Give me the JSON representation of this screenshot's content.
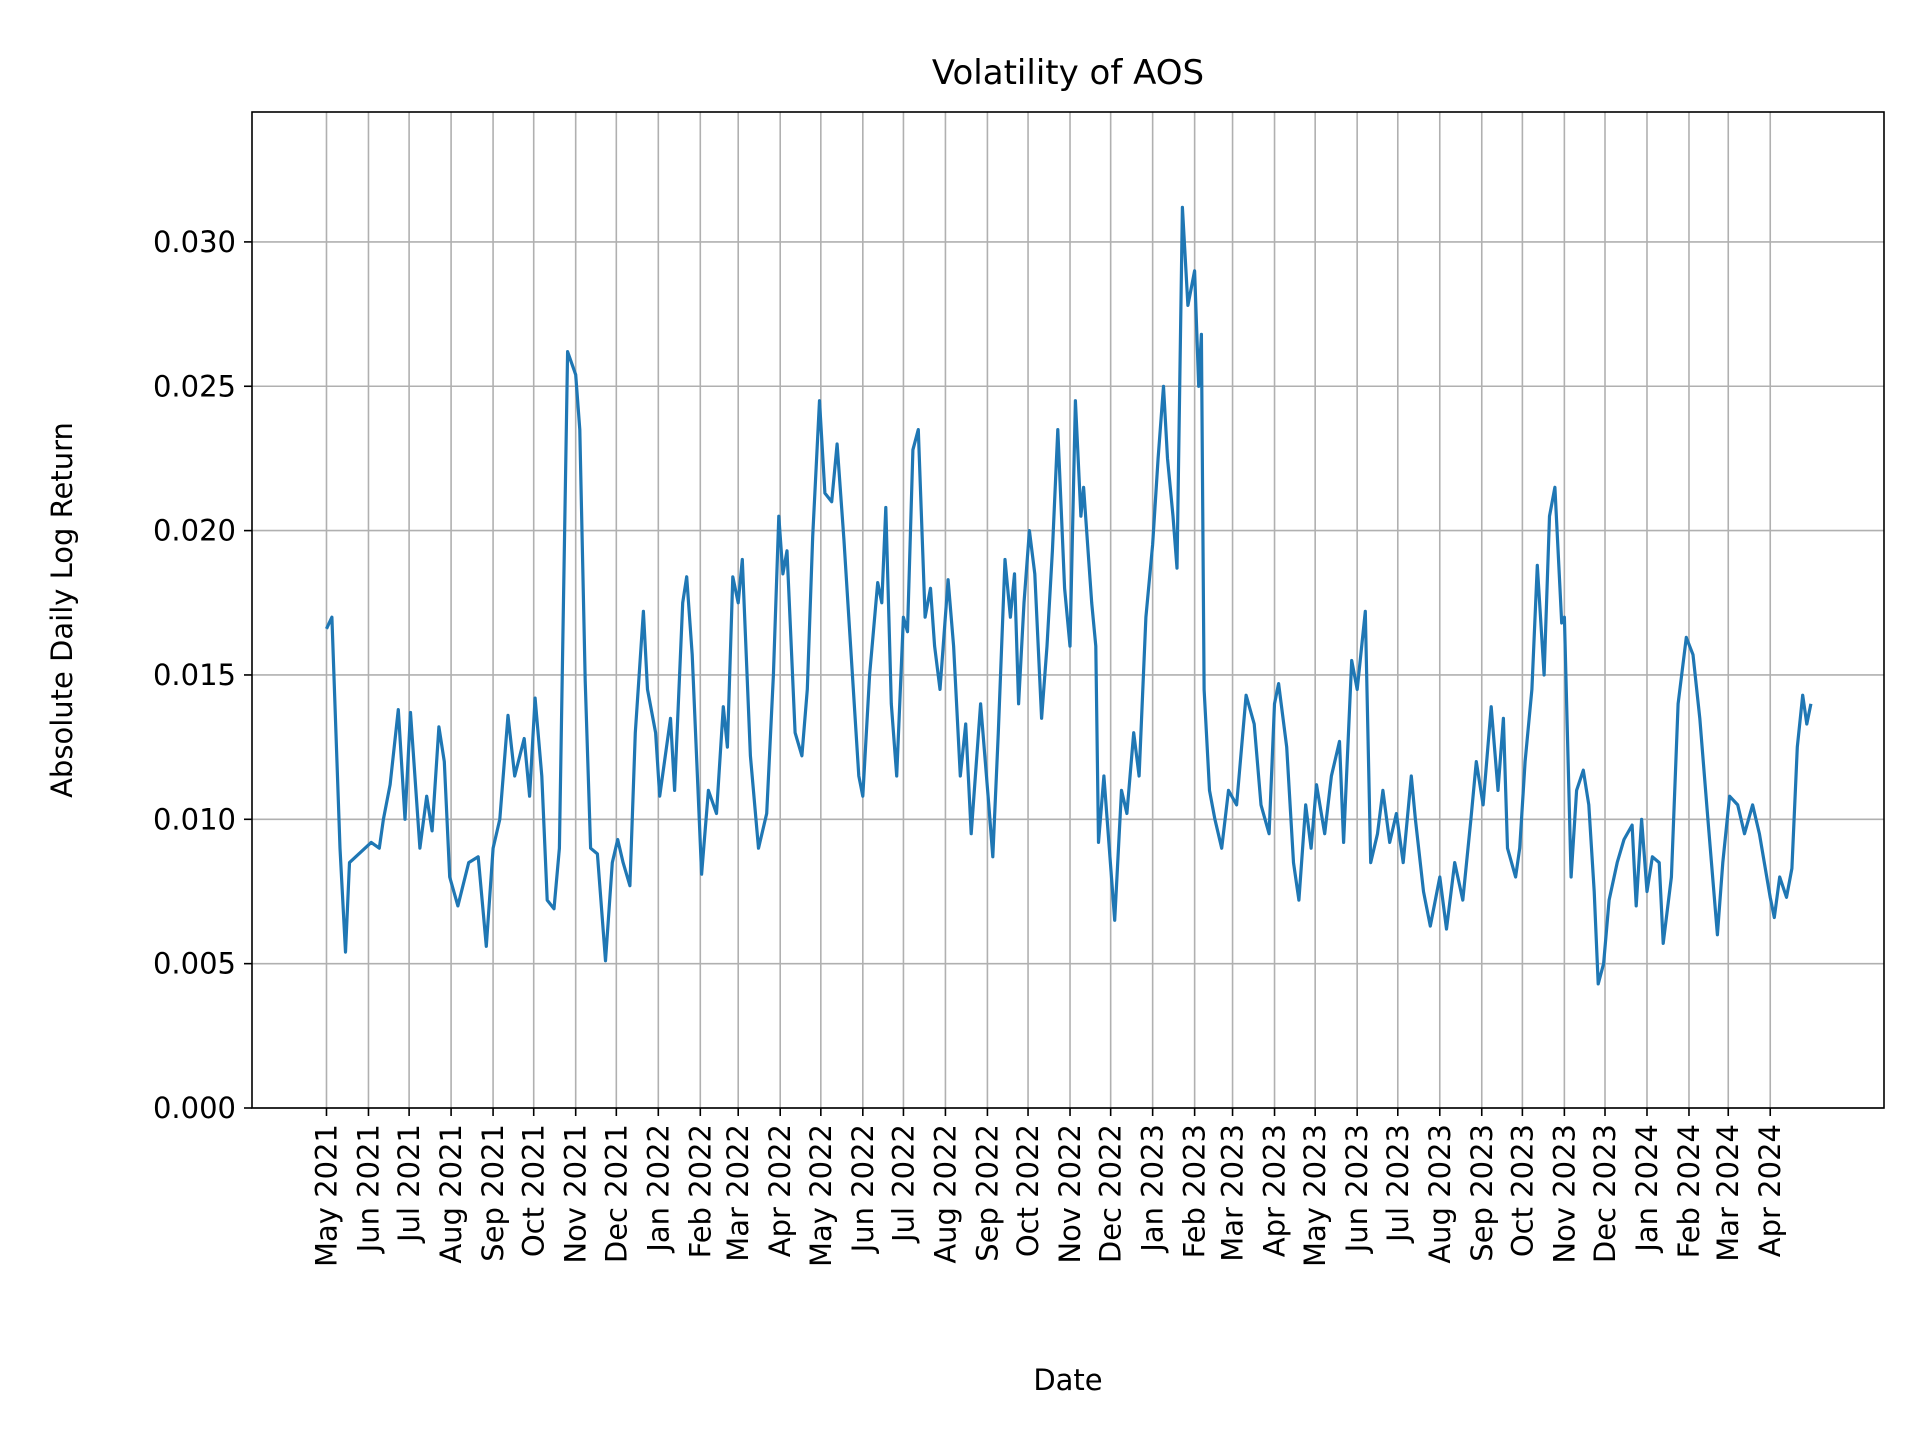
{
  "chart_data": {
    "type": "line",
    "title": "Volatility of AOS",
    "xlabel": "Date",
    "ylabel": "Absolute Daily Log Return",
    "xlim": [
      "2021-03-07",
      "2024-06-24"
    ],
    "ylim": [
      0,
      0.0345
    ],
    "grid": true,
    "line_color": "#1f77b4",
    "grid_color": "#b0b0b0",
    "yticks": [
      0,
      0.005,
      0.01,
      0.015,
      0.02,
      0.025,
      0.03
    ],
    "ytick_labels": [
      "0.000",
      "0.005",
      "0.010",
      "0.015",
      "0.020",
      "0.025",
      "0.030"
    ],
    "xticks": [
      "2021-05-01",
      "2021-06-01",
      "2021-07-01",
      "2021-08-01",
      "2021-09-01",
      "2021-10-01",
      "2021-11-01",
      "2021-12-01",
      "2022-01-01",
      "2022-02-01",
      "2022-03-01",
      "2022-04-01",
      "2022-05-01",
      "2022-06-01",
      "2022-07-01",
      "2022-08-01",
      "2022-09-01",
      "2022-10-01",
      "2022-11-01",
      "2022-12-01",
      "2023-01-01",
      "2023-02-01",
      "2023-03-01",
      "2023-04-01",
      "2023-05-01",
      "2023-06-01",
      "2023-07-01",
      "2023-08-01",
      "2023-09-01",
      "2023-10-01",
      "2023-11-01",
      "2023-12-01",
      "2024-01-01",
      "2024-02-01",
      "2024-03-01",
      "2024-04-01"
    ],
    "xtick_labels": [
      "May 2021",
      "Jun 2021",
      "Jul 2021",
      "Aug 2021",
      "Sep 2021",
      "Oct 2021",
      "Nov 2021",
      "Dec 2021",
      "Jan 2022",
      "Feb 2022",
      "Mar 2022",
      "Apr 2022",
      "May 2022",
      "Jun 2022",
      "Jul 2022",
      "Aug 2022",
      "Sep 2022",
      "Oct 2022",
      "Nov 2022",
      "Dec 2022",
      "Jan 2023",
      "Feb 2023",
      "Mar 2023",
      "Apr 2023",
      "May 2023",
      "Jun 2023",
      "Jul 2023",
      "Aug 2023",
      "Sep 2023",
      "Oct 2023",
      "Nov 2023",
      "Dec 2023",
      "Jan 2024",
      "Feb 2024",
      "Mar 2024",
      "Apr 2024"
    ],
    "series": [
      {
        "x": [
          "2021-05-01",
          "2021-05-05",
          "2021-05-11",
          "2021-05-15",
          "2021-05-18",
          "2021-06-03",
          "2021-06-09",
          "2021-06-12",
          "2021-06-17",
          "2021-06-23",
          "2021-06-28",
          "2021-07-02",
          "2021-07-09",
          "2021-07-14",
          "2021-07-18",
          "2021-07-23",
          "2021-07-27",
          "2021-07-31",
          "2021-08-06",
          "2021-08-14",
          "2021-08-21",
          "2021-08-27",
          "2021-09-01",
          "2021-09-06",
          "2021-09-12",
          "2021-09-17",
          "2021-09-24",
          "2021-09-28",
          "2021-10-02",
          "2021-10-07",
          "2021-10-11",
          "2021-10-16",
          "2021-10-20",
          "2021-10-26",
          "2021-11-01",
          "2021-11-04",
          "2021-11-08",
          "2021-11-12",
          "2021-11-17",
          "2021-11-23",
          "2021-11-28",
          "2021-12-02",
          "2021-12-06",
          "2021-12-11",
          "2021-12-15",
          "2021-12-21",
          "2021-12-24",
          "2021-12-30",
          "2022-01-02",
          "2022-01-10",
          "2022-01-13",
          "2022-01-19",
          "2022-01-22",
          "2022-01-26",
          "2022-02-02",
          "2022-02-07",
          "2022-02-13",
          "2022-02-18",
          "2022-02-21",
          "2022-02-25",
          "2022-03-01",
          "2022-03-04",
          "2022-03-10",
          "2022-03-16",
          "2022-03-22",
          "2022-03-27",
          "2022-03-31",
          "2022-04-03",
          "2022-04-06",
          "2022-04-12",
          "2022-04-17",
          "2022-04-21",
          "2022-04-25",
          "2022-04-30",
          "2022-05-04",
          "2022-05-09",
          "2022-05-13",
          "2022-05-18",
          "2022-05-23",
          "2022-05-29",
          "2022-06-01",
          "2022-06-06",
          "2022-06-12",
          "2022-06-15",
          "2022-06-18",
          "2022-06-22",
          "2022-06-26",
          "2022-07-01",
          "2022-07-04",
          "2022-07-08",
          "2022-07-12",
          "2022-07-17",
          "2022-07-21",
          "2022-07-24",
          "2022-07-28",
          "2022-08-03",
          "2022-08-07",
          "2022-08-12",
          "2022-08-16",
          "2022-08-20",
          "2022-08-27",
          "2022-09-02",
          "2022-09-05",
          "2022-09-09",
          "2022-09-14",
          "2022-09-18",
          "2022-09-21",
          "2022-09-24",
          "2022-09-28",
          "2022-10-02",
          "2022-10-06",
          "2022-10-11",
          "2022-10-15",
          "2022-10-19",
          "2022-10-23",
          "2022-10-28",
          "2022-11-01",
          "2022-11-05",
          "2022-11-09",
          "2022-11-11",
          "2022-11-17",
          "2022-11-20",
          "2022-11-22",
          "2022-11-26",
          "2022-11-30",
          "2022-12-04",
          "2022-12-09",
          "2022-12-13",
          "2022-12-18",
          "2022-12-22",
          "2022-12-27",
          "2023-01-01",
          "2023-01-05",
          "2023-01-09",
          "2023-01-12",
          "2023-01-16",
          "2023-01-19",
          "2023-01-23",
          "2023-01-27",
          "2023-02-01",
          "2023-02-04",
          "2023-02-06",
          "2023-02-08",
          "2023-02-12",
          "2023-02-16",
          "2023-02-21",
          "2023-02-26",
          "2023-03-04",
          "2023-03-11",
          "2023-03-17",
          "2023-03-22",
          "2023-03-28",
          "2023-04-01",
          "2023-04-04",
          "2023-04-10",
          "2023-04-15",
          "2023-04-19",
          "2023-04-24",
          "2023-04-28",
          "2023-05-02",
          "2023-05-08",
          "2023-05-13",
          "2023-05-19",
          "2023-05-22",
          "2023-05-28",
          "2023-06-01",
          "2023-06-07",
          "2023-06-11",
          "2023-06-16",
          "2023-06-20",
          "2023-06-25",
          "2023-06-30",
          "2023-07-05",
          "2023-07-11",
          "2023-07-14",
          "2023-07-20",
          "2023-07-25",
          "2023-08-01",
          "2023-08-06",
          "2023-08-12",
          "2023-08-18",
          "2023-08-24",
          "2023-08-28",
          "2023-09-02",
          "2023-09-08",
          "2023-09-13",
          "2023-09-17",
          "2023-09-20",
          "2023-09-26",
          "2023-09-29",
          "2023-10-03",
          "2023-10-08",
          "2023-10-12",
          "2023-10-17",
          "2023-10-21",
          "2023-10-25",
          "2023-10-30",
          "2023-11-01",
          "2023-11-06",
          "2023-11-10",
          "2023-11-15",
          "2023-11-19",
          "2023-11-23",
          "2023-11-26",
          "2023-11-30",
          "2023-12-04",
          "2023-12-10",
          "2023-12-15",
          "2023-12-21",
          "2023-12-24",
          "2023-12-28",
          "2024-01-01",
          "2024-01-05",
          "2024-01-10",
          "2024-01-13",
          "2024-01-19",
          "2024-01-24",
          "2024-01-30",
          "2024-02-04",
          "2024-02-09",
          "2024-02-15",
          "2024-02-22",
          "2024-02-26",
          "2024-03-02",
          "2024-03-08",
          "2024-03-13",
          "2024-03-19",
          "2024-03-24",
          "2024-04-01",
          "2024-04-04",
          "2024-04-08",
          "2024-04-13",
          "2024-04-17",
          "2024-04-21",
          "2024-04-25",
          "2024-04-28",
          "2024-05-01"
        ],
        "y": [
          0.0166,
          0.017,
          0.009,
          0.0054,
          0.0085,
          0.0092,
          0.009,
          0.01,
          0.0112,
          0.0138,
          0.01,
          0.0137,
          0.009,
          0.0108,
          0.0096,
          0.0132,
          0.012,
          0.008,
          0.007,
          0.0085,
          0.0087,
          0.0056,
          0.009,
          0.01,
          0.0136,
          0.0115,
          0.0128,
          0.0108,
          0.0142,
          0.0115,
          0.0072,
          0.0069,
          0.009,
          0.0262,
          0.0254,
          0.0235,
          0.0148,
          0.009,
          0.0088,
          0.0051,
          0.0085,
          0.0093,
          0.0085,
          0.0077,
          0.013,
          0.0172,
          0.0145,
          0.013,
          0.0108,
          0.0135,
          0.011,
          0.0175,
          0.0184,
          0.0157,
          0.0081,
          0.011,
          0.0102,
          0.0139,
          0.0125,
          0.0184,
          0.0175,
          0.019,
          0.0122,
          0.009,
          0.0102,
          0.015,
          0.0205,
          0.0185,
          0.0193,
          0.013,
          0.0122,
          0.0145,
          0.0198,
          0.0245,
          0.0213,
          0.021,
          0.023,
          0.0197,
          0.016,
          0.0115,
          0.0108,
          0.015,
          0.0182,
          0.0175,
          0.0208,
          0.014,
          0.0115,
          0.017,
          0.0165,
          0.0228,
          0.0235,
          0.017,
          0.018,
          0.016,
          0.0145,
          0.0183,
          0.016,
          0.0115,
          0.0133,
          0.0095,
          0.014,
          0.0105,
          0.0087,
          0.013,
          0.019,
          0.017,
          0.0185,
          0.014,
          0.0175,
          0.02,
          0.0185,
          0.0135,
          0.016,
          0.0193,
          0.0235,
          0.018,
          0.016,
          0.0245,
          0.0205,
          0.0215,
          0.0175,
          0.016,
          0.0092,
          0.0115,
          0.009,
          0.0065,
          0.011,
          0.0102,
          0.013,
          0.0115,
          0.017,
          0.0195,
          0.0225,
          0.025,
          0.0225,
          0.0205,
          0.0187,
          0.0312,
          0.0278,
          0.029,
          0.025,
          0.0268,
          0.0145,
          0.011,
          0.01,
          0.009,
          0.011,
          0.0105,
          0.0143,
          0.0133,
          0.0105,
          0.0095,
          0.014,
          0.0147,
          0.0125,
          0.0085,
          0.0072,
          0.0105,
          0.009,
          0.0112,
          0.0095,
          0.0115,
          0.0127,
          0.0092,
          0.0155,
          0.0145,
          0.0172,
          0.0085,
          0.0095,
          0.011,
          0.0092,
          0.0102,
          0.0085,
          0.0115,
          0.01,
          0.0075,
          0.0063,
          0.008,
          0.0062,
          0.0085,
          0.0072,
          0.01,
          0.012,
          0.0105,
          0.0139,
          0.011,
          0.0135,
          0.009,
          0.008,
          0.009,
          0.012,
          0.0145,
          0.0188,
          0.015,
          0.0205,
          0.0215,
          0.0168,
          0.017,
          0.008,
          0.011,
          0.0117,
          0.0105,
          0.0075,
          0.0043,
          0.005,
          0.0072,
          0.0085,
          0.0093,
          0.0098,
          0.007,
          0.01,
          0.0075,
          0.0087,
          0.0085,
          0.0057,
          0.008,
          0.014,
          0.0163,
          0.0157,
          0.0135,
          0.01,
          0.006,
          0.0085,
          0.0108,
          0.0105,
          0.0095,
          0.0105,
          0.0095,
          0.0073,
          0.0066,
          0.008,
          0.0073,
          0.0083,
          0.0125,
          0.0143,
          0.0133,
          0.014
        ]
      }
    ]
  }
}
